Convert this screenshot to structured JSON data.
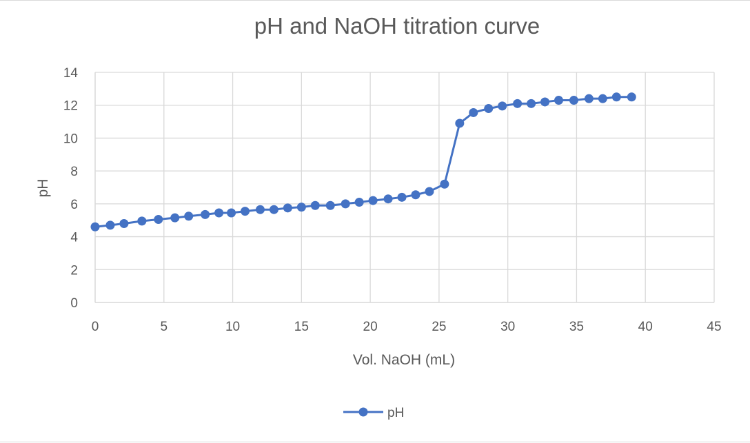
{
  "chart_data": {
    "type": "line",
    "title": "pH and NaOH titration curve",
    "xlabel": "Vol. NaOH (mL)",
    "ylabel": "pH",
    "xlim": [
      0,
      45
    ],
    "ylim": [
      0,
      14
    ],
    "xticks": [
      0,
      5,
      10,
      15,
      20,
      25,
      30,
      35,
      40,
      45
    ],
    "yticks": [
      0,
      2,
      4,
      6,
      8,
      10,
      12,
      14
    ],
    "grid": true,
    "legend_position": "bottom",
    "colors": {
      "series": "#4472c4",
      "grid": "#d9d9d9",
      "text": "#595959"
    },
    "series": [
      {
        "name": "pH",
        "marker": "circle",
        "x": [
          0,
          1.1,
          2.1,
          3.4,
          4.6,
          5.8,
          6.8,
          8.0,
          9.0,
          9.9,
          10.9,
          12.0,
          13.0,
          14.0,
          15.0,
          16.0,
          17.1,
          18.2,
          19.2,
          20.2,
          21.3,
          22.3,
          23.3,
          24.3,
          25.4,
          26.5,
          27.5,
          28.6,
          29.6,
          30.7,
          31.7,
          32.7,
          33.7,
          34.8,
          35.9,
          36.9,
          37.9,
          39.0
        ],
        "y": [
          4.6,
          4.7,
          4.8,
          4.95,
          5.05,
          5.15,
          5.25,
          5.35,
          5.45,
          5.45,
          5.55,
          5.65,
          5.65,
          5.75,
          5.8,
          5.9,
          5.9,
          6.0,
          6.1,
          6.2,
          6.3,
          6.4,
          6.55,
          6.75,
          7.2,
          10.9,
          11.55,
          11.8,
          11.95,
          12.1,
          12.1,
          12.2,
          12.3,
          12.3,
          12.4,
          12.4,
          12.5,
          12.5
        ]
      }
    ]
  }
}
